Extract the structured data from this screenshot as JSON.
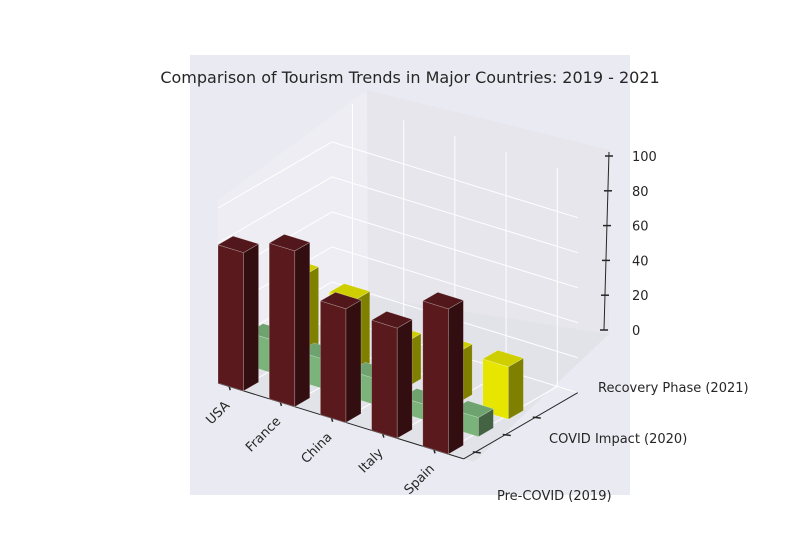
{
  "chart_data": {
    "type": "bar",
    "title": "Comparison of Tourism Trends in Major Countries: 2019 - 2021",
    "categories": [
      "USA",
      "France",
      "China",
      "Italy",
      "Spain"
    ],
    "series": [
      {
        "name": "Pre-COVID (2019)",
        "values": [
          79,
          89,
          65,
          63,
          83
        ]
      },
      {
        "name": "COVID Impact (2020)",
        "values": [
          19,
          17,
          15,
          9,
          11
        ]
      },
      {
        "name": "Recovery Phase (2021)",
        "values": [
          46,
          41,
          26,
          29,
          30
        ]
      }
    ],
    "zticks": [
      "0",
      "20",
      "40",
      "60",
      "80",
      "100"
    ],
    "zlim": [
      0,
      100
    ],
    "colors": {
      "pre_covid": "#5a1a1d",
      "covid_impact": "#7ab47a",
      "recovery": "#e6e600",
      "pane": "#eaeaf2"
    },
    "grid": true
  }
}
